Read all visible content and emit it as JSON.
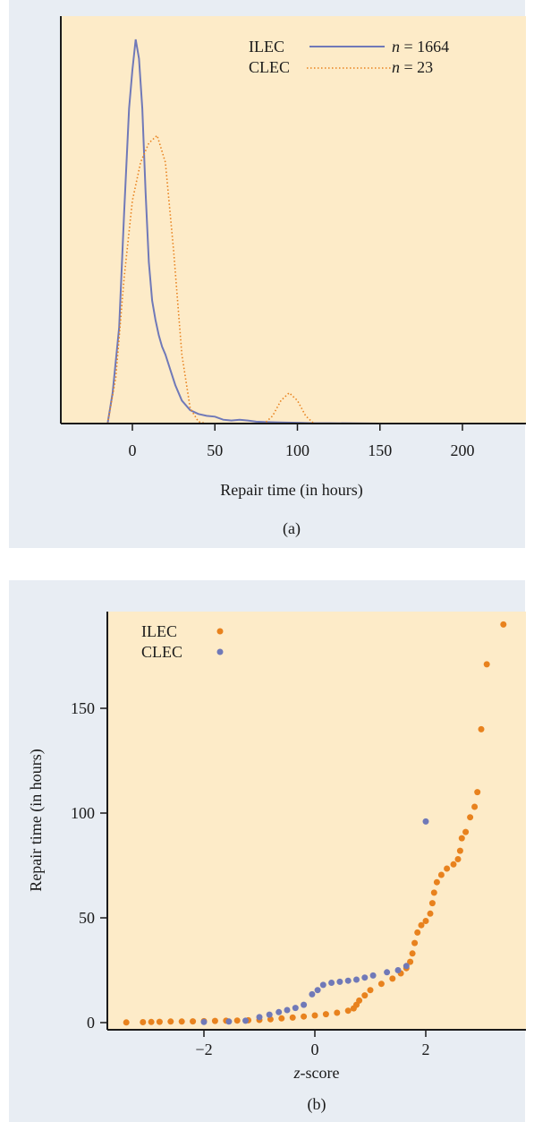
{
  "colors": {
    "panel_bg": "#e8edf3",
    "plot_bg": "#fdebc8",
    "ilec": "#7079b8",
    "clec": "#e8821e",
    "axis": "#1a1a1a"
  },
  "chart_data": [
    {
      "type": "line",
      "panel_label": "(a)",
      "xlabel": "Repair time (in hours)",
      "ylabel": "",
      "xlim": [
        -40,
        235
      ],
      "ylim": [
        0,
        1
      ],
      "xticks": [
        0,
        50,
        100,
        150,
        200
      ],
      "xtick_labels": [
        "0",
        "50",
        "100",
        "150",
        "200"
      ],
      "grid": false,
      "legend_position": "top-right",
      "series": [
        {
          "name": "ILEC",
          "n_label": "n = 1664",
          "n_prefix": "n",
          "n_value": "= 1664",
          "style": "solid",
          "x": [
            -15,
            -12,
            -8,
            -5,
            -2,
            0,
            2,
            4,
            6,
            8,
            10,
            12,
            14,
            16,
            18,
            20,
            23,
            26,
            30,
            35,
            40,
            45,
            50,
            55,
            60,
            65,
            70,
            75,
            80,
            90,
            100,
            110,
            120,
            150,
            200
          ],
          "y": [
            0.0,
            0.08,
            0.25,
            0.55,
            0.82,
            0.92,
            1.0,
            0.95,
            0.82,
            0.6,
            0.42,
            0.32,
            0.27,
            0.23,
            0.2,
            0.18,
            0.14,
            0.1,
            0.06,
            0.035,
            0.025,
            0.02,
            0.018,
            0.01,
            0.008,
            0.01,
            0.008,
            0.005,
            0.004,
            0.003,
            0.002,
            0.001,
            0.001,
            0.0,
            0.0
          ]
        },
        {
          "name": "CLEC",
          "n_label": "n = 23",
          "n_prefix": "n",
          "n_value": "= 23",
          "style": "dotted",
          "x": [
            -15,
            -10,
            -5,
            0,
            5,
            10,
            15,
            20,
            25,
            30,
            35,
            40,
            45,
            50,
            60,
            70,
            80,
            85,
            90,
            95,
            100,
            105,
            110,
            115,
            120
          ],
          "y": [
            0.0,
            0.12,
            0.38,
            0.58,
            0.68,
            0.73,
            0.75,
            0.68,
            0.45,
            0.18,
            0.04,
            0.005,
            0.0,
            0.0,
            0.0,
            0.0,
            0.0,
            0.02,
            0.06,
            0.08,
            0.06,
            0.02,
            0.0,
            0.0,
            0.0
          ]
        }
      ]
    },
    {
      "type": "scatter",
      "panel_label": "(b)",
      "xlabel_italic": "z",
      "xlabel_rest": "-score",
      "ylabel": "Repair time (in hours)",
      "xlim": [
        -3.9,
        3.8
      ],
      "ylim": [
        -3,
        197
      ],
      "xticks": [
        -2,
        0,
        2
      ],
      "xtick_labels": [
        "−2",
        "0",
        "2"
      ],
      "yticks": [
        0,
        50,
        100,
        150
      ],
      "ytick_labels": [
        "0",
        "50",
        "100",
        "150"
      ],
      "grid": false,
      "legend_position": "top-left",
      "series": [
        {
          "name": "ILEC",
          "points": [
            [
              -3.4,
              0.1
            ],
            [
              -3.1,
              0.2
            ],
            [
              -2.95,
              0.3
            ],
            [
              -2.8,
              0.4
            ],
            [
              -2.6,
              0.5
            ],
            [
              -2.4,
              0.5
            ],
            [
              -2.2,
              0.6
            ],
            [
              -2.0,
              0.7
            ],
            [
              -1.8,
              0.8
            ],
            [
              -1.6,
              0.9
            ],
            [
              -1.4,
              1.0
            ],
            [
              -1.2,
              1.1
            ],
            [
              -1.0,
              1.3
            ],
            [
              -0.8,
              1.6
            ],
            [
              -0.6,
              2.0
            ],
            [
              -0.4,
              2.4
            ],
            [
              -0.2,
              2.9
            ],
            [
              0.0,
              3.4
            ],
            [
              0.2,
              4.0
            ],
            [
              0.4,
              4.7
            ],
            [
              0.6,
              5.7
            ],
            [
              0.7,
              6.8
            ],
            [
              0.75,
              8.5
            ],
            [
              0.8,
              10.5
            ],
            [
              0.9,
              13.0
            ],
            [
              1.0,
              15.5
            ],
            [
              1.2,
              18.5
            ],
            [
              1.4,
              21.0
            ],
            [
              1.55,
              23.5
            ],
            [
              1.65,
              26.0
            ],
            [
              1.72,
              29.0
            ],
            [
              1.76,
              33.0
            ],
            [
              1.8,
              38.0
            ],
            [
              1.85,
              43.0
            ],
            [
              1.92,
              46.5
            ],
            [
              2.0,
              48.5
            ],
            [
              2.08,
              52.0
            ],
            [
              2.12,
              57.0
            ],
            [
              2.15,
              62.0
            ],
            [
              2.2,
              67.0
            ],
            [
              2.28,
              70.5
            ],
            [
              2.38,
              73.5
            ],
            [
              2.5,
              75.5
            ],
            [
              2.58,
              78.0
            ],
            [
              2.62,
              82.0
            ],
            [
              2.65,
              88.0
            ],
            [
              2.72,
              91.0
            ],
            [
              2.8,
              98.0
            ],
            [
              2.88,
              103.0
            ],
            [
              2.93,
              110.0
            ],
            [
              3.0,
              140.0
            ],
            [
              3.1,
              171.0
            ],
            [
              3.4,
              190.0
            ]
          ]
        },
        {
          "name": "CLEC",
          "points": [
            [
              -2.0,
              0.3
            ],
            [
              -1.55,
              0.5
            ],
            [
              -1.25,
              0.9
            ],
            [
              -1.0,
              2.6
            ],
            [
              -0.82,
              3.8
            ],
            [
              -0.65,
              5.0
            ],
            [
              -0.5,
              6.0
            ],
            [
              -0.35,
              7.0
            ],
            [
              -0.2,
              8.5
            ],
            [
              -0.05,
              13.5
            ],
            [
              0.05,
              15.5
            ],
            [
              0.15,
              18.0
            ],
            [
              0.3,
              19.0
            ],
            [
              0.45,
              19.5
            ],
            [
              0.6,
              20.0
            ],
            [
              0.75,
              20.5
            ],
            [
              0.9,
              21.5
            ],
            [
              1.05,
              22.5
            ],
            [
              1.3,
              24.0
            ],
            [
              1.5,
              25.0
            ],
            [
              1.65,
              27.0
            ],
            [
              2.0,
              96.0
            ]
          ]
        }
      ]
    }
  ]
}
